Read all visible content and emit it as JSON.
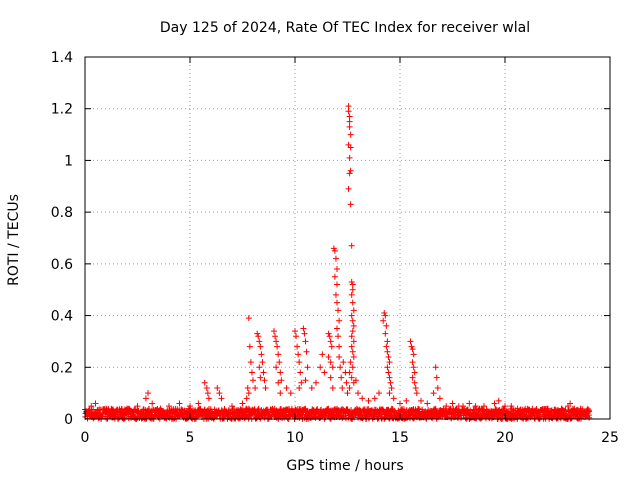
{
  "chart_data": {
    "type": "scatter",
    "title": "Day 125 of 2024, Rate Of TEC Index for receiver wlal",
    "xlabel": "GPS time / hours",
    "ylabel": "ROTI / TECUs",
    "xlim": [
      0,
      25
    ],
    "ylim": [
      0,
      1.4
    ],
    "x_ticks": [
      0,
      5,
      10,
      15,
      20,
      25
    ],
    "x_tick_labels": [
      "0",
      "5",
      "10",
      "15",
      "20",
      "25"
    ],
    "y_ticks": [
      0,
      0.2,
      0.4,
      0.6,
      0.8,
      1.0,
      1.2,
      1.4
    ],
    "y_tick_labels": [
      "0",
      "0.2",
      "0.4",
      "0.6",
      "0.8",
      "1",
      "1.2",
      "1.4"
    ],
    "grid": true,
    "grid_style": "dotted",
    "marker": "+",
    "color": "#ff0000",
    "points": [
      [
        0.3,
        0.05
      ],
      [
        0.5,
        0.06
      ],
      [
        1.0,
        0.04
      ],
      [
        1.5,
        0.03
      ],
      [
        2.0,
        0.04
      ],
      [
        2.5,
        0.05
      ],
      [
        2.9,
        0.08
      ],
      [
        3.0,
        0.1
      ],
      [
        3.2,
        0.06
      ],
      [
        3.6,
        0.04
      ],
      [
        4.0,
        0.05
      ],
      [
        4.5,
        0.06
      ],
      [
        5.0,
        0.05
      ],
      [
        5.4,
        0.06
      ],
      [
        5.7,
        0.14
      ],
      [
        5.8,
        0.12
      ],
      [
        5.85,
        0.1
      ],
      [
        5.9,
        0.08
      ],
      [
        6.3,
        0.12
      ],
      [
        6.4,
        0.1
      ],
      [
        6.5,
        0.08
      ],
      [
        7.0,
        0.05
      ],
      [
        7.5,
        0.06
      ],
      [
        7.7,
        0.08
      ],
      [
        7.75,
        0.12
      ],
      [
        7.8,
        0.1
      ],
      [
        7.8,
        0.39
      ],
      [
        7.85,
        0.28
      ],
      [
        7.9,
        0.22
      ],
      [
        7.95,
        0.18
      ],
      [
        8.0,
        0.15
      ],
      [
        8.1,
        0.12
      ],
      [
        8.2,
        0.33
      ],
      [
        8.25,
        0.32
      ],
      [
        8.3,
        0.3
      ],
      [
        8.35,
        0.28
      ],
      [
        8.4,
        0.25
      ],
      [
        8.45,
        0.22
      ],
      [
        8.5,
        0.18
      ],
      [
        8.55,
        0.15
      ],
      [
        8.6,
        0.12
      ],
      [
        8.3,
        0.2
      ],
      [
        8.35,
        0.16
      ],
      [
        9.0,
        0.34
      ],
      [
        9.05,
        0.32
      ],
      [
        9.1,
        0.3
      ],
      [
        9.15,
        0.28
      ],
      [
        9.2,
        0.25
      ],
      [
        9.25,
        0.22
      ],
      [
        9.3,
        0.18
      ],
      [
        9.35,
        0.15
      ],
      [
        9.1,
        0.2
      ],
      [
        9.2,
        0.14
      ],
      [
        9.3,
        0.1
      ],
      [
        9.6,
        0.12
      ],
      [
        9.8,
        0.1
      ],
      [
        10.0,
        0.34
      ],
      [
        10.05,
        0.32
      ],
      [
        10.1,
        0.28
      ],
      [
        10.15,
        0.25
      ],
      [
        10.2,
        0.22
      ],
      [
        10.25,
        0.18
      ],
      [
        10.3,
        0.14
      ],
      [
        10.2,
        0.12
      ],
      [
        10.4,
        0.35
      ],
      [
        10.45,
        0.33
      ],
      [
        10.5,
        0.3
      ],
      [
        10.55,
        0.26
      ],
      [
        10.6,
        0.2
      ],
      [
        10.5,
        0.15
      ],
      [
        10.8,
        0.12
      ],
      [
        11.0,
        0.14
      ],
      [
        11.2,
        0.2
      ],
      [
        11.3,
        0.25
      ],
      [
        11.4,
        0.18
      ],
      [
        11.6,
        0.33
      ],
      [
        11.65,
        0.32
      ],
      [
        11.7,
        0.3
      ],
      [
        11.75,
        0.28
      ],
      [
        11.6,
        0.24
      ],
      [
        11.7,
        0.22
      ],
      [
        11.8,
        0.2
      ],
      [
        11.7,
        0.16
      ],
      [
        11.8,
        0.12
      ],
      [
        11.85,
        0.66
      ],
      [
        11.9,
        0.65
      ],
      [
        11.95,
        0.62
      ],
      [
        12.0,
        0.58
      ],
      [
        11.9,
        0.55
      ],
      [
        12.0,
        0.52
      ],
      [
        11.95,
        0.48
      ],
      [
        12.0,
        0.45
      ],
      [
        12.05,
        0.42
      ],
      [
        12.1,
        0.38
      ],
      [
        12.0,
        0.35
      ],
      [
        12.05,
        0.32
      ],
      [
        12.1,
        0.28
      ],
      [
        12.1,
        0.24
      ],
      [
        12.15,
        0.2
      ],
      [
        12.2,
        0.16
      ],
      [
        12.25,
        0.12
      ],
      [
        12.3,
        0.22
      ],
      [
        12.4,
        0.18
      ],
      [
        12.45,
        0.14
      ],
      [
        12.55,
        1.21
      ],
      [
        12.55,
        1.19
      ],
      [
        12.6,
        1.17
      ],
      [
        12.6,
        1.15
      ],
      [
        12.6,
        1.13
      ],
      [
        12.65,
        1.1
      ],
      [
        12.55,
        1.06
      ],
      [
        12.65,
        1.05
      ],
      [
        12.6,
        1.01
      ],
      [
        12.65,
        0.96
      ],
      [
        12.6,
        0.95
      ],
      [
        12.55,
        0.89
      ],
      [
        12.65,
        0.83
      ],
      [
        12.7,
        0.67
      ],
      [
        12.7,
        0.53
      ],
      [
        12.75,
        0.52
      ],
      [
        12.75,
        0.5
      ],
      [
        12.7,
        0.48
      ],
      [
        12.75,
        0.45
      ],
      [
        12.8,
        0.42
      ],
      [
        12.7,
        0.4
      ],
      [
        12.75,
        0.38
      ],
      [
        12.8,
        0.36
      ],
      [
        12.75,
        0.34
      ],
      [
        12.7,
        0.32
      ],
      [
        12.8,
        0.3
      ],
      [
        12.7,
        0.28
      ],
      [
        12.75,
        0.26
      ],
      [
        12.8,
        0.24
      ],
      [
        12.65,
        0.22
      ],
      [
        12.75,
        0.2
      ],
      [
        12.6,
        0.18
      ],
      [
        12.7,
        0.16
      ],
      [
        12.8,
        0.14
      ],
      [
        12.6,
        0.12
      ],
      [
        12.5,
        0.1
      ],
      [
        12.9,
        0.15
      ],
      [
        13.0,
        0.1
      ],
      [
        13.2,
        0.08
      ],
      [
        13.5,
        0.07
      ],
      [
        13.8,
        0.08
      ],
      [
        14.0,
        0.1
      ],
      [
        14.2,
        0.38
      ],
      [
        14.25,
        0.41
      ],
      [
        14.3,
        0.4
      ],
      [
        14.35,
        0.36
      ],
      [
        14.3,
        0.33
      ],
      [
        14.4,
        0.3
      ],
      [
        14.35,
        0.28
      ],
      [
        14.4,
        0.26
      ],
      [
        14.45,
        0.24
      ],
      [
        14.5,
        0.22
      ],
      [
        14.4,
        0.2
      ],
      [
        14.45,
        0.18
      ],
      [
        14.5,
        0.16
      ],
      [
        14.55,
        0.14
      ],
      [
        14.6,
        0.12
      ],
      [
        14.5,
        0.1
      ],
      [
        14.7,
        0.08
      ],
      [
        15.0,
        0.06
      ],
      [
        15.3,
        0.07
      ],
      [
        15.5,
        0.3
      ],
      [
        15.55,
        0.28
      ],
      [
        15.6,
        0.27
      ],
      [
        15.65,
        0.25
      ],
      [
        15.6,
        0.22
      ],
      [
        15.65,
        0.2
      ],
      [
        15.7,
        0.18
      ],
      [
        15.6,
        0.16
      ],
      [
        15.7,
        0.14
      ],
      [
        15.75,
        0.12
      ],
      [
        15.8,
        0.1
      ],
      [
        16.0,
        0.07
      ],
      [
        16.3,
        0.06
      ],
      [
        16.6,
        0.1
      ],
      [
        16.7,
        0.2
      ],
      [
        16.75,
        0.16
      ],
      [
        16.8,
        0.12
      ],
      [
        16.9,
        0.08
      ],
      [
        17.2,
        0.05
      ],
      [
        17.5,
        0.06
      ],
      [
        17.8,
        0.05
      ],
      [
        18.0,
        0.05
      ],
      [
        18.3,
        0.06
      ],
      [
        18.6,
        0.05
      ],
      [
        19.0,
        0.05
      ],
      [
        19.5,
        0.06
      ],
      [
        19.7,
        0.07
      ],
      [
        20.0,
        0.05
      ],
      [
        20.3,
        0.05
      ],
      [
        20.6,
        0.04
      ],
      [
        21.0,
        0.03
      ],
      [
        21.5,
        0.03
      ],
      [
        21.8,
        0.03
      ],
      [
        22.0,
        0.04
      ],
      [
        22.4,
        0.03
      ],
      [
        22.7,
        0.04
      ],
      [
        23.0,
        0.05
      ],
      [
        23.1,
        0.06
      ],
      [
        23.3,
        0.04
      ],
      [
        23.6,
        0.04
      ],
      [
        24.0,
        0.03
      ]
    ],
    "baseline_band": [
      0.0,
      0.04
    ],
    "baseline_range_x": [
      0,
      24
    ]
  }
}
